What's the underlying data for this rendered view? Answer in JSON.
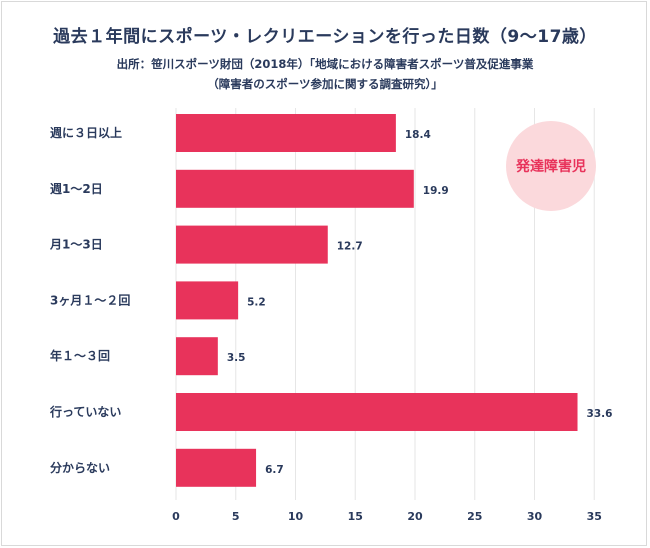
{
  "chart_data": {
    "type": "bar",
    "orientation": "horizontal",
    "title": "過去１年間にスポーツ・レクリエーションを行った日数（9～17歳）",
    "source_line1": "出所：笹川スポーツ財団（2018年）「地域における障害者スポーツ普及促進事業",
    "source_line2": "（障害者のスポーツ参加に関する調査研究）」",
    "badge": "発達障害児",
    "categories": [
      "週に３日以上",
      "週1～2日",
      "月1～3日",
      "3ヶ月１～２回",
      "年１～３回",
      "行っていない",
      "分からない"
    ],
    "values": [
      18.4,
      19.9,
      12.7,
      5.2,
      3.5,
      33.6,
      6.7
    ],
    "value_labels": [
      "18.4",
      "19.9",
      "12.7",
      "5.2",
      "3.5",
      "33.6",
      "6.7"
    ],
    "xlim": [
      0,
      35
    ],
    "xticks": [
      "0",
      "5",
      "10",
      "15",
      "20",
      "25",
      "30",
      "35"
    ],
    "grid": true,
    "colors": {
      "bar": "#e8335b",
      "badge_bg": "#fbd9dc",
      "badge_text": "#e8335b",
      "grid": "#e6e6e6",
      "text": "#2a3a5c"
    }
  }
}
